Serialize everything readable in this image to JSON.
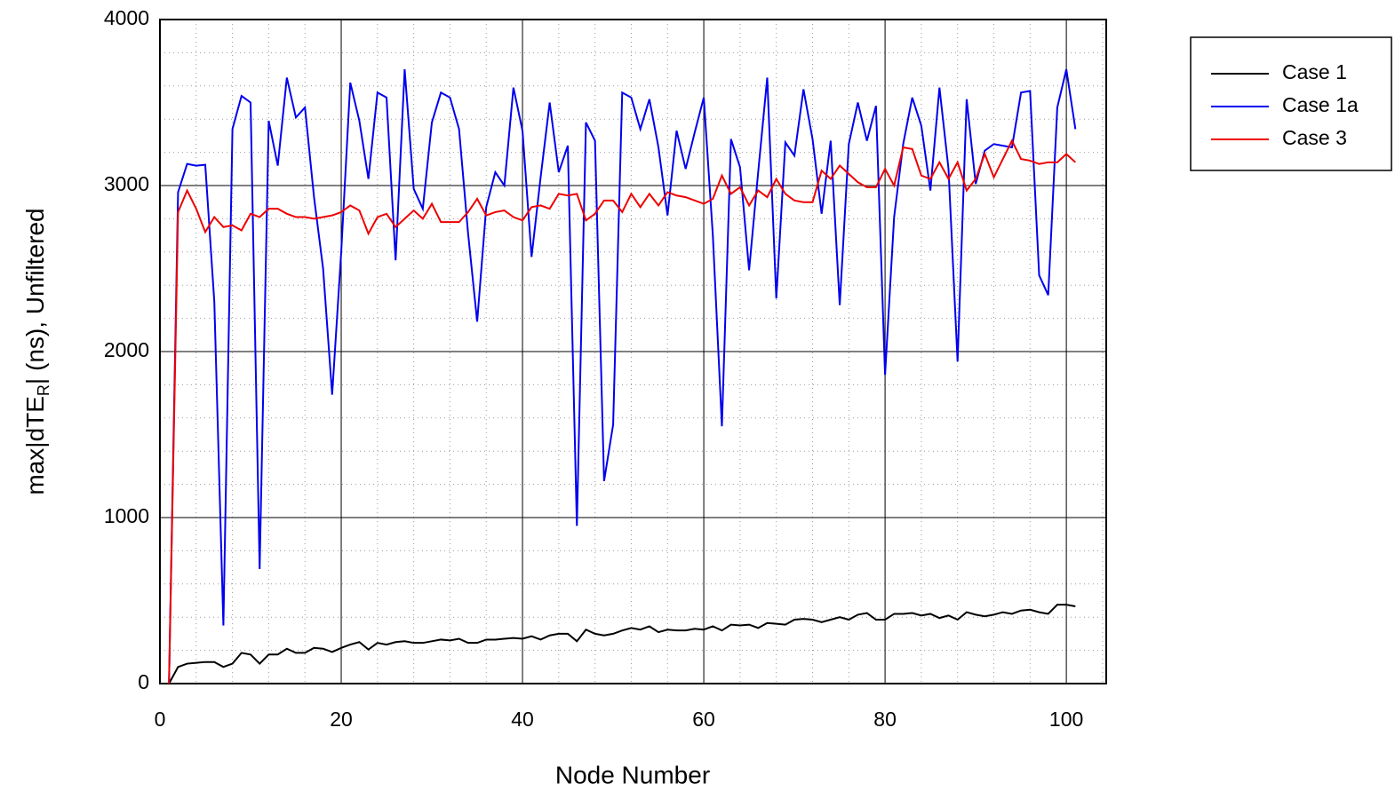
{
  "chart_data": {
    "type": "line",
    "xlabel": "Node Number",
    "ylabel": {
      "main": "max|dTE",
      "sub": "R",
      "rest": "| (ns), Unfiltered"
    },
    "x": [
      1,
      2,
      3,
      4,
      5,
      6,
      7,
      8,
      9,
      10,
      11,
      12,
      13,
      14,
      15,
      16,
      17,
      18,
      19,
      20,
      21,
      22,
      23,
      24,
      25,
      26,
      27,
      28,
      29,
      30,
      31,
      32,
      33,
      34,
      35,
      36,
      37,
      38,
      39,
      40,
      41,
      42,
      43,
      44,
      45,
      46,
      47,
      48,
      49,
      50,
      51,
      52,
      53,
      54,
      55,
      56,
      57,
      58,
      59,
      60,
      61,
      62,
      63,
      64,
      65,
      66,
      67,
      68,
      69,
      70,
      71,
      72,
      73,
      74,
      75,
      76,
      77,
      78,
      79,
      80,
      81,
      82,
      83,
      84,
      85,
      86,
      87,
      88,
      89,
      90,
      91,
      92,
      93,
      94,
      95,
      96,
      97,
      98,
      99,
      100,
      101
    ],
    "series": [
      {
        "name": "Case 1",
        "color": "#000000",
        "values": [
          0,
          100,
          120,
          125,
          130,
          130,
          100,
          120,
          185,
          175,
          120,
          175,
          175,
          210,
          185,
          185,
          215,
          210,
          190,
          215,
          235,
          250,
          205,
          245,
          235,
          250,
          255,
          245,
          245,
          255,
          265,
          260,
          270,
          245,
          245,
          265,
          265,
          270,
          275,
          270,
          285,
          265,
          290,
          300,
          300,
          255,
          325,
          300,
          290,
          300,
          320,
          335,
          325,
          345,
          310,
          325,
          320,
          320,
          330,
          325,
          345,
          320,
          355,
          350,
          355,
          335,
          365,
          360,
          355,
          385,
          390,
          385,
          370,
          385,
          400,
          385,
          415,
          425,
          385,
          385,
          420,
          420,
          425,
          410,
          420,
          395,
          410,
          385,
          430,
          415,
          405,
          415,
          430,
          420,
          440,
          445,
          430,
          420,
          475,
          475,
          465
        ]
      },
      {
        "name": "Case 1a",
        "color": "#0000ee",
        "values": [
          0,
          2960,
          3130,
          3120,
          3125,
          2300,
          350,
          3340,
          3540,
          3500,
          690,
          3390,
          3120,
          3650,
          3410,
          3470,
          2930,
          2500,
          1740,
          2600,
          3620,
          3390,
          3040,
          3560,
          3530,
          2550,
          3700,
          2980,
          2860,
          3380,
          3560,
          3530,
          3340,
          2710,
          2180,
          2870,
          3080,
          3000,
          3590,
          3330,
          2570,
          3050,
          3500,
          3080,
          3240,
          950,
          3380,
          3270,
          1220,
          1560,
          3560,
          3530,
          3340,
          3520,
          3230,
          2820,
          3330,
          3100,
          3320,
          3530,
          2700,
          1550,
          3280,
          3110,
          2490,
          3080,
          3650,
          2320,
          3260,
          3180,
          3580,
          3280,
          2830,
          3270,
          2280,
          3250,
          3500,
          3270,
          3480,
          1860,
          2810,
          3250,
          3530,
          3360,
          2970,
          3590,
          3100,
          1940,
          3520,
          3010,
          3210,
          3250,
          3240,
          3230,
          3560,
          3570,
          2460,
          2340,
          3470,
          3700,
          3340
        ]
      },
      {
        "name": "Case 3",
        "color": "#ee0000",
        "values": [
          0,
          2840,
          2970,
          2860,
          2720,
          2810,
          2750,
          2760,
          2730,
          2830,
          2810,
          2860,
          2860,
          2830,
          2810,
          2810,
          2800,
          2810,
          2820,
          2840,
          2880,
          2850,
          2710,
          2810,
          2830,
          2750,
          2800,
          2850,
          2800,
          2890,
          2780,
          2780,
          2780,
          2840,
          2920,
          2820,
          2840,
          2850,
          2810,
          2790,
          2870,
          2880,
          2860,
          2950,
          2940,
          2950,
          2790,
          2830,
          2910,
          2910,
          2840,
          2950,
          2870,
          2950,
          2880,
          2960,
          2940,
          2930,
          2910,
          2890,
          2920,
          3060,
          2950,
          2990,
          2880,
          2970,
          2930,
          3040,
          2950,
          2910,
          2900,
          2900,
          3090,
          3040,
          3120,
          3070,
          3020,
          2990,
          2990,
          3100,
          3000,
          3230,
          3220,
          3060,
          3040,
          3140,
          3040,
          3140,
          2970,
          3040,
          3190,
          3050,
          3160,
          3270,
          3160,
          3150,
          3130,
          3140,
          3140,
          3190,
          3140
        ]
      }
    ],
    "xlim": [
      0,
      104.4
    ],
    "ylim": [
      0,
      4000
    ],
    "xticks": [
      0,
      20,
      40,
      60,
      80,
      100
    ],
    "yticks": [
      0,
      1000,
      2000,
      3000,
      4000
    ],
    "minor_xticks": [
      4,
      8,
      12,
      16,
      24,
      28,
      32,
      36,
      44,
      48,
      52,
      56,
      64,
      68,
      72,
      76,
      84,
      88,
      92,
      96,
      104
    ],
    "minor_yticks": [
      200,
      400,
      600,
      800,
      1200,
      1400,
      1600,
      1800,
      2200,
      2400,
      2600,
      2800,
      3200,
      3400,
      3600,
      3800
    ],
    "grid": true,
    "legend": "outside-right"
  }
}
